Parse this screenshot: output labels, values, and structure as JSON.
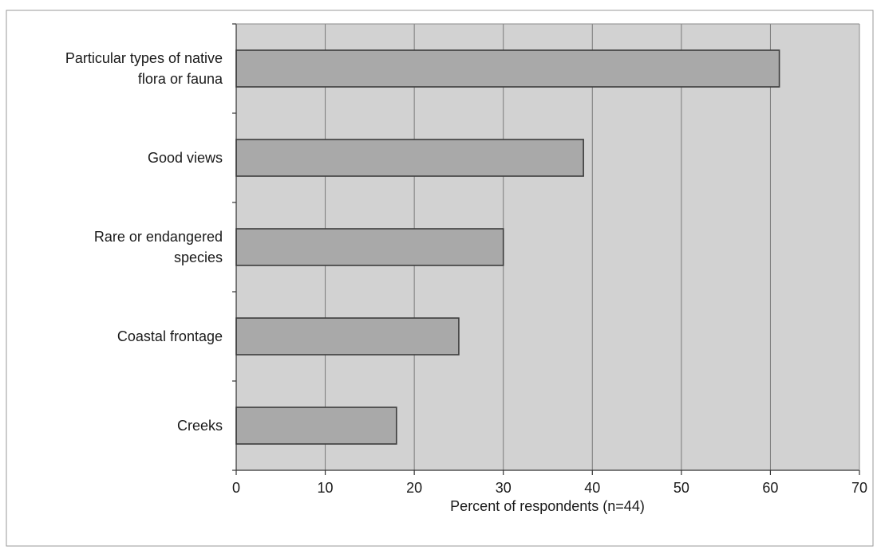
{
  "chart_data": {
    "type": "bar",
    "orientation": "horizontal",
    "categories": [
      [
        "Particular types of native",
        "flora or fauna"
      ],
      [
        "Good views"
      ],
      [
        "Rare or endangered",
        "species"
      ],
      [
        "Coastal frontage"
      ],
      [
        "Creeks"
      ]
    ],
    "values": [
      61,
      39,
      30,
      25,
      18
    ],
    "xlabel": "Percent of respondents (n=44)",
    "ylabel": "",
    "xlim": [
      0,
      70
    ],
    "xticks": [
      "0",
      "10",
      "20",
      "30",
      "40",
      "50",
      "60",
      "70"
    ],
    "grid": true,
    "legend": "none",
    "colors": {
      "plot_background": "#d2d2d2",
      "bar_fill": "#a9a9a9",
      "bar_stroke": "#3c3c3c",
      "gridline": "#7a7a7a",
      "axis": "#333333",
      "text": "#1a1a1a"
    }
  }
}
